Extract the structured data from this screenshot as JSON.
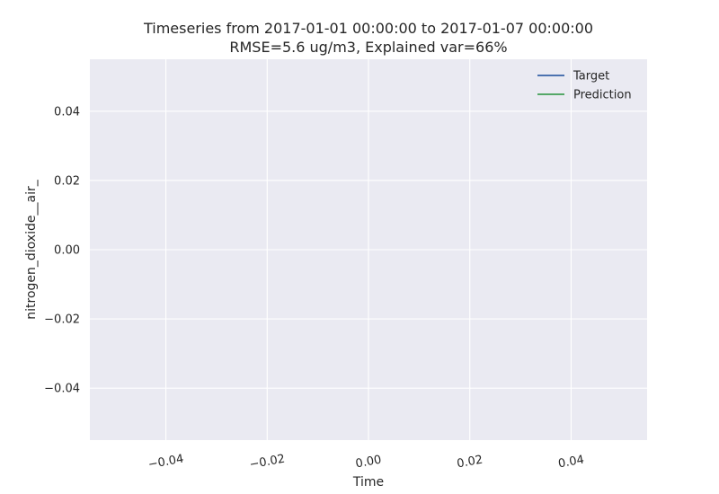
{
  "chart_data": {
    "type": "line",
    "title_lines": [
      "Timeseries from 2017-01-01 00:00:00 to 2017-01-07 00:00:00",
      "RMSE=5.6 ug/m3, Explained var=66%"
    ],
    "xlabel": "Time",
    "ylabel": "nitrogen_dioxide__air_",
    "xlim": [
      -0.055,
      0.055
    ],
    "ylim": [
      -0.055,
      0.055
    ],
    "x_ticks": [
      -0.04,
      -0.02,
      0.0,
      0.02,
      0.04
    ],
    "x_tick_labels": [
      "−0.04",
      "−0.02",
      "0.00",
      "0.02",
      "0.04"
    ],
    "y_ticks": [
      0.04,
      0.02,
      0.0,
      -0.02,
      -0.04
    ],
    "y_tick_labels": [
      "0.04",
      "0.02",
      "0.00",
      "−0.02",
      "−0.04"
    ],
    "grid": true,
    "legend_position": "top-right",
    "series": [
      {
        "name": "Target",
        "color": "#4c72b0",
        "x": [],
        "y": []
      },
      {
        "name": "Prediction",
        "color": "#55a868",
        "x": [],
        "y": []
      }
    ],
    "colors": {
      "plot_background": "#eaeaf2",
      "grid": "#ffffff",
      "text": "#262626"
    }
  }
}
